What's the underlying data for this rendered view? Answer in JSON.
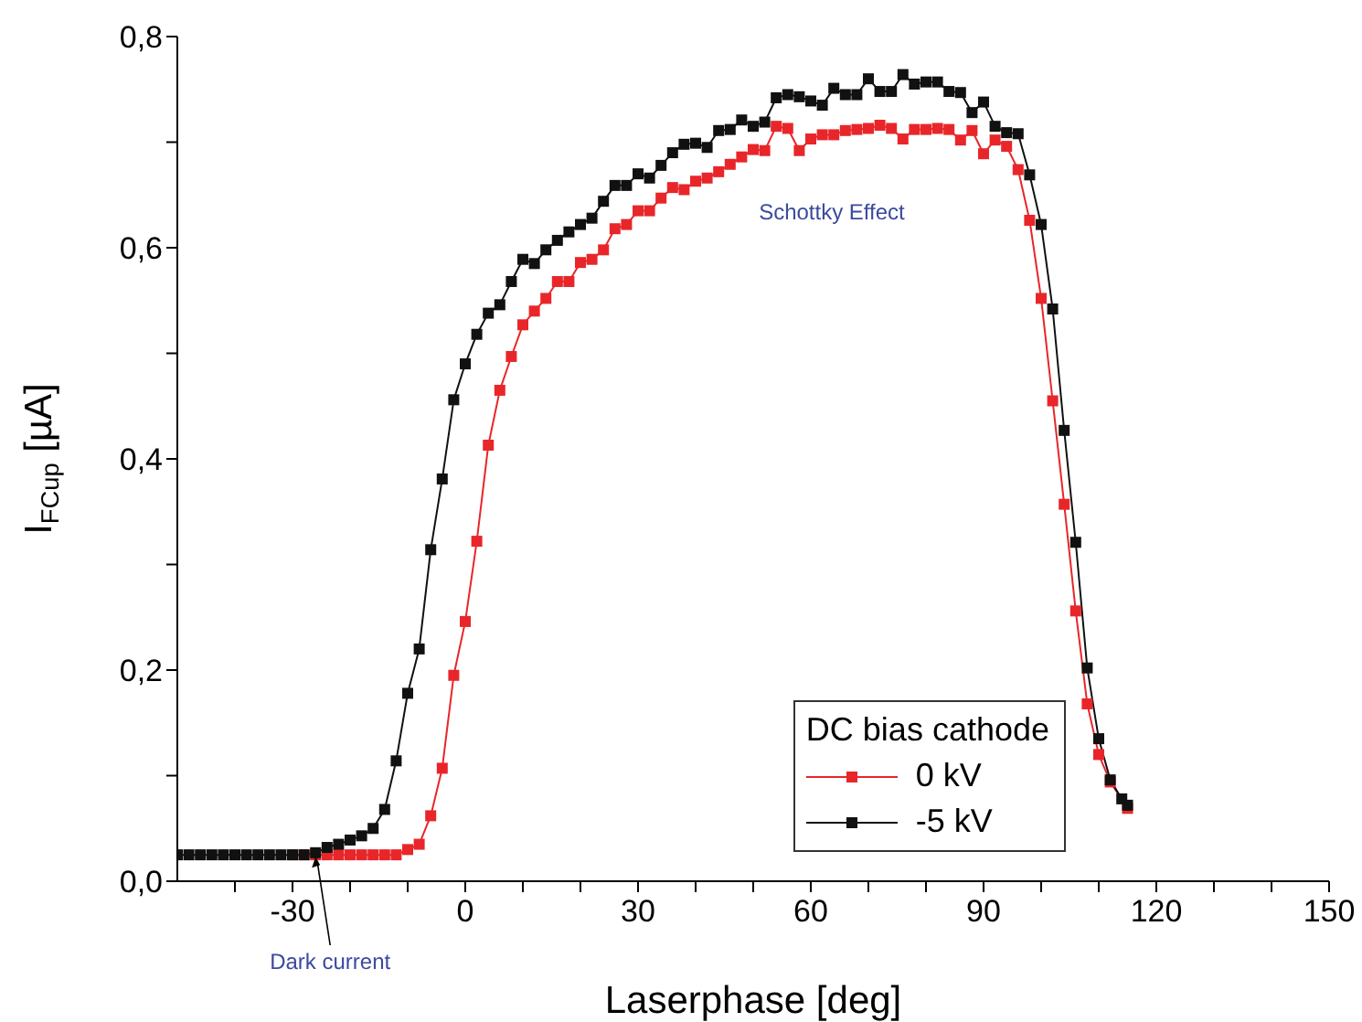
{
  "chart_data": {
    "type": "line",
    "xlabel": "Laserphase [deg]",
    "ylabel": "I$_{FCup}$ [µA]",
    "legend_title": "DC bias cathode",
    "legend": "bottom right",
    "marker": "square",
    "line_style": "solid",
    "grid": false,
    "xlim": [
      -50,
      150
    ],
    "xticks": [
      {
        "value": -40,
        "label": null
      },
      -30,
      {
        "value": -20,
        "label": null
      },
      {
        "value": -10,
        "label": null
      },
      0,
      {
        "value": 10,
        "label": null
      },
      {
        "value": 20,
        "label": null
      },
      30,
      {
        "value": 40,
        "label": null
      },
      {
        "value": 50,
        "label": null
      },
      60,
      {
        "value": 70,
        "label": null
      },
      {
        "value": 80,
        "label": null
      },
      90,
      {
        "value": 100,
        "label": null
      },
      {
        "value": 110,
        "label": null
      },
      120,
      {
        "value": 130,
        "label": null
      },
      {
        "value": 140,
        "label": null
      },
      150
    ],
    "ylim": [
      0,
      0.8
    ],
    "yticks": [
      {
        "value": 0,
        "label": "0,0"
      },
      {
        "value": 0.1,
        "label": null
      },
      {
        "value": 0.2,
        "label": "0,2"
      },
      {
        "value": 0.3,
        "label": null
      },
      {
        "value": 0.4,
        "label": "0,4"
      },
      {
        "value": 0.5,
        "label": null
      },
      {
        "value": 0.6,
        "label": "0,6"
      },
      {
        "value": 0.7,
        "label": null
      },
      {
        "value": 0.8,
        "label": "0,8"
      }
    ],
    "annotations": [
      "Schottky Effect",
      {
        "text": "Dark current",
        "x": -26,
        "y": 0.025
      }
    ],
    "series": [
      {
        "name": "0 kV",
        "color": "#e8262a",
        "x": [
          -30,
          -28,
          -26,
          -24,
          -22,
          -20,
          -18,
          -16,
          -14,
          -12,
          -10,
          -8,
          -6,
          -4,
          -2,
          0,
          2,
          4,
          6,
          8,
          10,
          12,
          14,
          16,
          18,
          20,
          22,
          24,
          26,
          28,
          30,
          32,
          34,
          36,
          38,
          40,
          42,
          44,
          46,
          48,
          50,
          52,
          54,
          56,
          58,
          60,
          62,
          64,
          66,
          68,
          70,
          72,
          74,
          76,
          78,
          80,
          82,
          84,
          86,
          88,
          90,
          92,
          94,
          96,
          98,
          100,
          102,
          104,
          106,
          108,
          110,
          112,
          115
        ],
        "values": [
          0.025,
          0.025,
          0.025,
          0.025,
          0.025,
          0.025,
          0.025,
          0.025,
          0.025,
          0.025,
          0.03,
          0.035,
          0.062,
          0.107,
          0.195,
          0.246,
          0.322,
          0.413,
          0.465,
          0.497,
          0.527,
          0.54,
          0.552,
          0.568,
          0.568,
          0.586,
          0.589,
          0.598,
          0.618,
          0.622,
          0.635,
          0.635,
          0.647,
          0.657,
          0.655,
          0.663,
          0.666,
          0.672,
          0.679,
          0.686,
          0.693,
          0.692,
          0.715,
          0.713,
          0.692,
          0.703,
          0.707,
          0.707,
          0.711,
          0.712,
          0.713,
          0.716,
          0.713,
          0.703,
          0.712,
          0.712,
          0.713,
          0.712,
          0.702,
          0.711,
          0.689,
          0.702,
          0.696,
          0.674,
          0.626,
          0.552,
          0.455,
          0.357,
          0.256,
          0.168,
          0.12,
          0.094,
          0.069
        ]
      },
      {
        "name": "-5 kV",
        "color": "#111111",
        "x": [
          -50,
          -48,
          -46,
          -44,
          -42,
          -40,
          -38,
          -36,
          -34,
          -32,
          -30,
          -28,
          -26,
          -24,
          -22,
          -20,
          -18,
          -16,
          -14,
          -12,
          -10,
          -8,
          -6,
          -4,
          -2,
          0,
          2,
          4,
          6,
          8,
          10,
          12,
          14,
          16,
          18,
          20,
          22,
          24,
          26,
          28,
          30,
          32,
          34,
          36,
          38,
          40,
          42,
          44,
          46,
          48,
          50,
          52,
          54,
          56,
          58,
          60,
          62,
          64,
          66,
          68,
          70,
          72,
          74,
          76,
          78,
          80,
          82,
          84,
          86,
          88,
          90,
          92,
          94,
          96,
          98,
          100,
          102,
          104,
          106,
          108,
          110,
          112,
          114,
          115
        ],
        "values": [
          0.025,
          0.025,
          0.025,
          0.025,
          0.025,
          0.025,
          0.025,
          0.025,
          0.025,
          0.025,
          0.025,
          0.025,
          0.027,
          0.032,
          0.035,
          0.039,
          0.043,
          0.05,
          0.068,
          0.114,
          0.178,
          0.22,
          0.314,
          0.381,
          0.456,
          0.49,
          0.518,
          0.538,
          0.546,
          0.568,
          0.589,
          0.585,
          0.598,
          0.607,
          0.615,
          0.622,
          0.628,
          0.644,
          0.659,
          0.659,
          0.67,
          0.666,
          0.678,
          0.69,
          0.698,
          0.699,
          0.695,
          0.711,
          0.712,
          0.721,
          0.715,
          0.719,
          0.742,
          0.745,
          0.743,
          0.739,
          0.735,
          0.751,
          0.745,
          0.745,
          0.76,
          0.748,
          0.748,
          0.764,
          0.755,
          0.757,
          0.757,
          0.748,
          0.747,
          0.728,
          0.738,
          0.715,
          0.709,
          0.708,
          0.669,
          0.622,
          0.542,
          0.427,
          0.321,
          0.202,
          0.135,
          0.096,
          0.078,
          0.072
        ]
      }
    ]
  }
}
